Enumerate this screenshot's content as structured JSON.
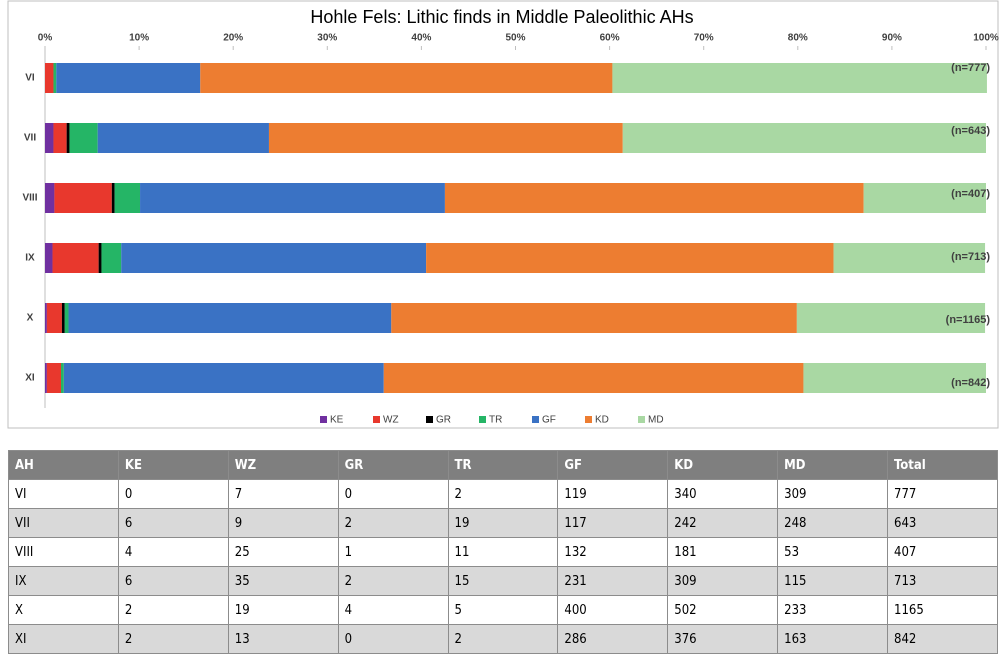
{
  "chart_data": {
    "type": "stacked-bar-horizontal",
    "title": "Hohle Fels: Lithic finds in Middle Paleolithic AHs",
    "categories": [
      "VI",
      "VII",
      "VIII",
      "IX",
      "X",
      "XI"
    ],
    "series": [
      {
        "name": "KE",
        "color": "#7030a0",
        "values": [
          0,
          0.9,
          1.0,
          0.8,
          0.2,
          0.2
        ]
      },
      {
        "name": "WZ",
        "color": "#e8382d",
        "values": [
          0.9,
          1.4,
          6.1,
          4.9,
          1.6,
          1.5
        ]
      },
      {
        "name": "GR",
        "color": "#000000",
        "values": [
          0,
          0.3,
          0.3,
          0.3,
          0.3,
          0
        ]
      },
      {
        "name": "TR",
        "color": "#25b566",
        "values": [
          0.3,
          3.0,
          2.7,
          2.1,
          0.4,
          0.3
        ]
      },
      {
        "name": "GF",
        "color": "#3a72c4",
        "values": [
          15.3,
          18.2,
          32.4,
          32.4,
          34.3,
          34.0
        ]
      },
      {
        "name": "KD",
        "color": "#ed7d31",
        "values": [
          43.8,
          37.6,
          44.5,
          43.3,
          43.1,
          44.6
        ]
      },
      {
        "name": "MD",
        "color": "#a9d8a3",
        "values": [
          39.8,
          38.6,
          13.0,
          16.1,
          20.0,
          19.4
        ]
      }
    ],
    "annotations": [
      "(n=777)",
      "(n=643)",
      "(n=407)",
      "(n=713)",
      "(n=1165)",
      "(n=842)"
    ],
    "xlim": [
      0,
      100
    ],
    "xticks": [
      {
        "value": 0,
        "label": "0%"
      },
      {
        "value": 10,
        "label": "10%"
      },
      {
        "value": 20,
        "label": "20%"
      },
      {
        "value": 30,
        "label": "30%"
      },
      {
        "value": 40,
        "label": "40%"
      },
      {
        "value": 50,
        "label": "50%"
      },
      {
        "value": 60,
        "label": "60%"
      },
      {
        "value": 70,
        "label": "70%"
      },
      {
        "value": 80,
        "label": "80%"
      },
      {
        "value": 90,
        "label": "90%"
      },
      {
        "value": 100,
        "label": "100%"
      }
    ],
    "legend": "bottom"
  },
  "table": {
    "header": [
      "AH",
      "KE",
      "WZ",
      "GR",
      "TR",
      "GF",
      "KD",
      "MD",
      "Total"
    ],
    "rows": [
      [
        "VI",
        0,
        7,
        0,
        2,
        119,
        340,
        309,
        777
      ],
      [
        "VII",
        6,
        9,
        2,
        19,
        117,
        242,
        248,
        643
      ],
      [
        "VIII",
        4,
        25,
        1,
        11,
        132,
        181,
        53,
        407
      ],
      [
        "IX",
        6,
        35,
        2,
        15,
        231,
        309,
        115,
        713
      ],
      [
        "X",
        2,
        19,
        4,
        5,
        400,
        502,
        233,
        1165
      ],
      [
        "XI",
        2,
        13,
        0,
        2,
        286,
        376,
        163,
        842
      ]
    ]
  }
}
